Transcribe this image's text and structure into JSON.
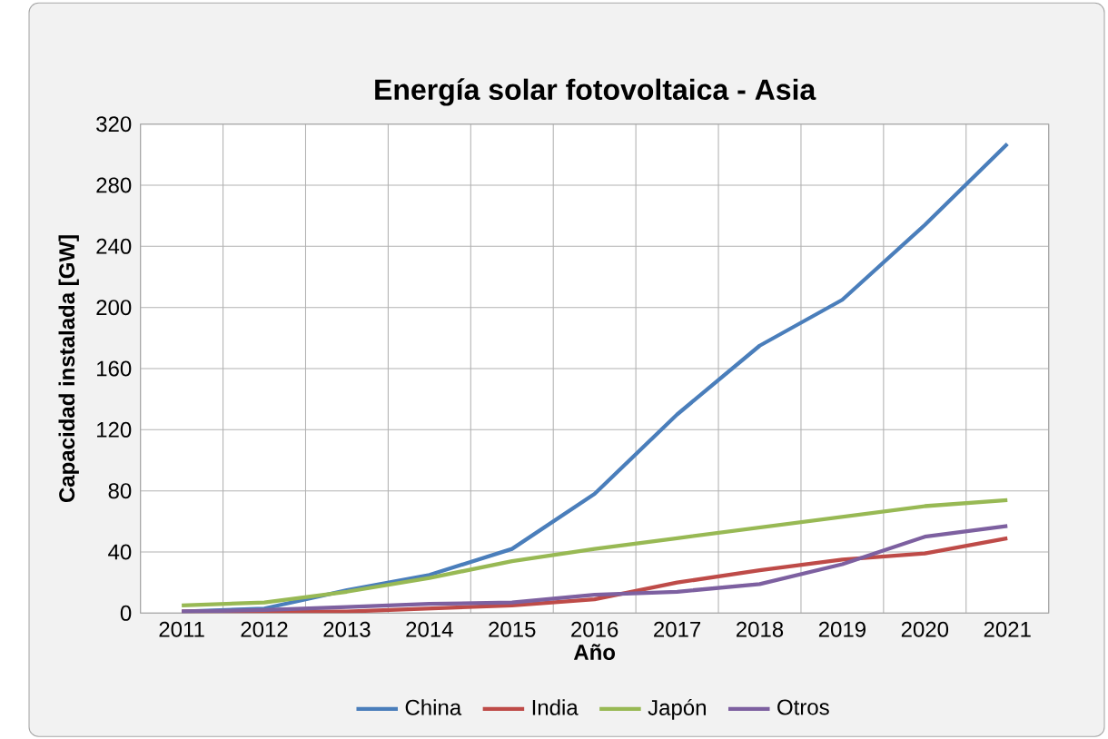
{
  "chart_data": {
    "type": "line",
    "title": "Energía solar fotovoltaica - Asia",
    "xlabel": "Año",
    "ylabel": "Capacidad instalada [GW]",
    "categories": [
      "2011",
      "2012",
      "2013",
      "2014",
      "2015",
      "2016",
      "2017",
      "2018",
      "2019",
      "2020",
      "2021"
    ],
    "series": [
      {
        "name": "China",
        "color": "#4a7ebb",
        "values": [
          1,
          3,
          15,
          25,
          42,
          78,
          130,
          175,
          205,
          254,
          307
        ]
      },
      {
        "name": "India",
        "color": "#be4b48",
        "values": [
          1,
          1,
          1,
          3,
          5,
          9,
          20,
          28,
          35,
          39,
          49
        ]
      },
      {
        "name": "Japón",
        "color": "#98b954",
        "values": [
          5,
          7,
          14,
          23,
          34,
          42,
          49,
          56,
          63,
          70,
          74
        ]
      },
      {
        "name": "Otros",
        "color": "#7d60a0",
        "values": [
          1,
          2,
          4,
          6,
          7,
          12,
          14,
          19,
          32,
          50,
          57
        ]
      }
    ],
    "ylim": [
      0,
      320
    ],
    "yticks": [
      0,
      40,
      80,
      120,
      160,
      200,
      240,
      280,
      320
    ],
    "grid": true,
    "legend": "bottom",
    "marker": "none",
    "line_style": "solid"
  }
}
